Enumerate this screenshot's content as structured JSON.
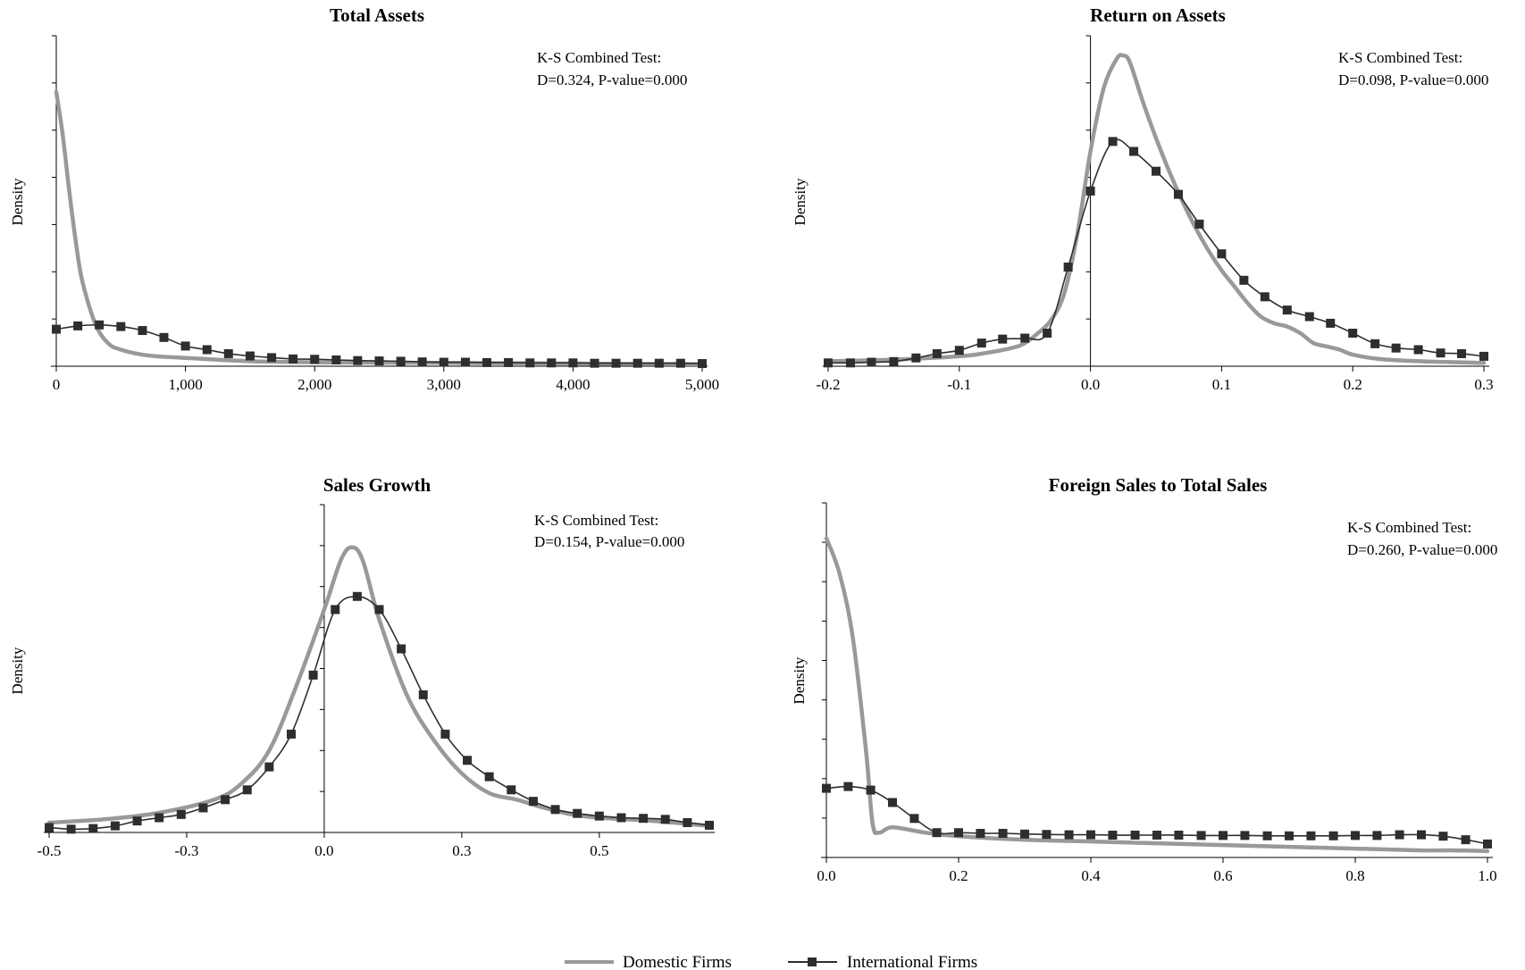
{
  "legend": {
    "domestic": {
      "label": "Domestic Firms",
      "color": "#999999"
    },
    "international": {
      "label": "International Firms",
      "color": "#2e2e2e"
    }
  },
  "chart_data": [
    {
      "type": "line",
      "title": "Total Assets",
      "xlabel": "",
      "ylabel": "Density",
      "xlim": [
        0,
        5000
      ],
      "ylim": [
        0,
        1
      ],
      "yaxis_at": 0,
      "x_ticks": [
        0,
        1000,
        2000,
        3000,
        4000,
        5000
      ],
      "x_tick_labels": [
        "0",
        "1,000",
        "2,000",
        "3,000",
        "4,000",
        "5,000"
      ],
      "y_minor_ticks": 7,
      "grid": false,
      "annotation": [
        "K-S Combined Test:",
        "D=0.324, P-value=0.000"
      ],
      "annotation_position": "top-right",
      "series": [
        {
          "name": "Domestic Firms",
          "style": "line",
          "x": [
            0,
            50,
            100,
            150,
            200,
            300,
            400,
            500,
            700,
            1000,
            1500,
            2000,
            3000,
            4000,
            5000
          ],
          "y": [
            0.83,
            0.7,
            0.53,
            0.38,
            0.26,
            0.13,
            0.07,
            0.05,
            0.033,
            0.025,
            0.015,
            0.012,
            0.01,
            0.008,
            0.006
          ]
        },
        {
          "name": "International Firms",
          "style": "line-marker",
          "x": [
            0,
            167,
            333,
            500,
            667,
            833,
            1000,
            1167,
            1333,
            1500,
            1667,
            1833,
            2000,
            2167,
            2333,
            2500,
            2667,
            2833,
            3000,
            3167,
            3333,
            3500,
            3667,
            3833,
            4000,
            4167,
            4333,
            4500,
            4667,
            4833,
            5000
          ],
          "y": [
            0.112,
            0.122,
            0.125,
            0.12,
            0.108,
            0.087,
            0.061,
            0.05,
            0.038,
            0.031,
            0.026,
            0.022,
            0.021,
            0.019,
            0.017,
            0.016,
            0.015,
            0.013,
            0.012,
            0.012,
            0.011,
            0.011,
            0.01,
            0.01,
            0.01,
            0.009,
            0.009,
            0.009,
            0.009,
            0.009,
            0.008
          ]
        }
      ]
    },
    {
      "type": "line",
      "title": "Return on Assets",
      "xlabel": "",
      "ylabel": "Density",
      "xlim": [
        -0.2,
        0.3
      ],
      "ylim": [
        0,
        1
      ],
      "yaxis_at": 0,
      "x_ticks": [
        -0.2,
        -0.1,
        0,
        0.1,
        0.2,
        0.3
      ],
      "x_tick_labels": [
        "-0.2",
        "-0.1",
        "0.0",
        "0.1",
        "0.2",
        "0.3"
      ],
      "y_minor_ticks": 7,
      "grid": false,
      "annotation": [
        "K-S Combined Test:",
        "D=0.098, P-value=0.000"
      ],
      "annotation_position": "top-right",
      "series": [
        {
          "name": "Domestic Firms",
          "style": "line",
          "x": [
            -0.2,
            -0.15,
            -0.1,
            -0.08,
            -0.06,
            -0.05,
            -0.04,
            -0.03,
            -0.02,
            -0.01,
            0.0,
            0.01,
            0.02,
            0.025,
            0.03,
            0.04,
            0.05,
            0.06,
            0.07,
            0.08,
            0.09,
            0.1,
            0.11,
            0.12,
            0.13,
            0.14,
            0.15,
            0.16,
            0.17,
            0.18,
            0.19,
            0.2,
            0.22,
            0.25,
            0.3
          ],
          "y": [
            0.015,
            0.02,
            0.03,
            0.04,
            0.055,
            0.07,
            0.1,
            0.14,
            0.22,
            0.4,
            0.65,
            0.84,
            0.93,
            0.94,
            0.92,
            0.8,
            0.69,
            0.59,
            0.5,
            0.42,
            0.35,
            0.29,
            0.24,
            0.19,
            0.15,
            0.13,
            0.12,
            0.1,
            0.07,
            0.06,
            0.05,
            0.035,
            0.022,
            0.015,
            0.01
          ]
        },
        {
          "name": "International Firms",
          "style": "line-marker",
          "x": [
            -0.2,
            -0.183,
            -0.167,
            -0.15,
            -0.133,
            -0.117,
            -0.1,
            -0.083,
            -0.067,
            -0.05,
            -0.033,
            -0.017,
            0.0,
            0.017,
            0.033,
            0.05,
            0.067,
            0.083,
            0.1,
            0.117,
            0.133,
            0.15,
            0.167,
            0.183,
            0.2,
            0.217,
            0.233,
            0.25,
            0.267,
            0.283,
            0.3
          ],
          "y": [
            0.01,
            0.01,
            0.012,
            0.014,
            0.025,
            0.038,
            0.048,
            0.07,
            0.082,
            0.085,
            0.1,
            0.3,
            0.53,
            0.68,
            0.65,
            0.59,
            0.52,
            0.43,
            0.34,
            0.26,
            0.21,
            0.17,
            0.15,
            0.13,
            0.1,
            0.068,
            0.055,
            0.05,
            0.04,
            0.038,
            0.03
          ]
        }
      ]
    },
    {
      "type": "line",
      "title": "Sales Growth",
      "xlabel": "",
      "ylabel": "Density",
      "xlim": [
        -0.5,
        0.7
      ],
      "ylim": [
        0,
        1
      ],
      "yaxis_at": 0,
      "x_ticks": [
        -0.5,
        -0.25,
        0,
        0.25,
        0.5
      ],
      "x_tick_labels": [
        "-0.5",
        "-0.3",
        "0.0",
        "0.3",
        "0.5"
      ],
      "y_minor_ticks": 8,
      "grid": false,
      "annotation": [
        "K-S Combined Test:",
        "D=0.154, P-value=0.000"
      ],
      "annotation_position": "top-right",
      "series": [
        {
          "name": "Domestic Firms",
          "style": "line",
          "x": [
            -0.5,
            -0.4,
            -0.3,
            -0.2,
            -0.15,
            -0.1,
            -0.05,
            0.0,
            0.03,
            0.05,
            0.07,
            0.1,
            0.15,
            0.2,
            0.25,
            0.3,
            0.35,
            0.4,
            0.45,
            0.5,
            0.6,
            0.7
          ],
          "y": [
            0.03,
            0.04,
            0.06,
            0.1,
            0.15,
            0.25,
            0.45,
            0.68,
            0.83,
            0.87,
            0.83,
            0.65,
            0.42,
            0.28,
            0.18,
            0.12,
            0.1,
            0.075,
            0.055,
            0.045,
            0.035,
            0.02
          ]
        },
        {
          "name": "International Firms",
          "style": "line-marker",
          "x": [
            -0.5,
            -0.46,
            -0.42,
            -0.38,
            -0.34,
            -0.3,
            -0.26,
            -0.22,
            -0.18,
            -0.14,
            -0.1,
            -0.06,
            -0.02,
            0.02,
            0.06,
            0.1,
            0.14,
            0.18,
            0.22,
            0.26,
            0.3,
            0.34,
            0.38,
            0.42,
            0.46,
            0.5,
            0.54,
            0.58,
            0.62,
            0.66,
            0.7
          ],
          "y": [
            0.015,
            0.01,
            0.012,
            0.02,
            0.035,
            0.045,
            0.055,
            0.075,
            0.1,
            0.13,
            0.2,
            0.3,
            0.48,
            0.68,
            0.72,
            0.68,
            0.56,
            0.42,
            0.3,
            0.22,
            0.17,
            0.13,
            0.095,
            0.07,
            0.058,
            0.05,
            0.045,
            0.043,
            0.04,
            0.03,
            0.022
          ]
        }
      ]
    },
    {
      "type": "line",
      "title": "Foreign Sales to Total Sales",
      "xlabel": "",
      "ylabel": "Density",
      "xlim": [
        0,
        1
      ],
      "ylim": [
        0,
        1
      ],
      "yaxis_at": 0,
      "x_ticks": [
        0,
        0.2,
        0.4,
        0.6,
        0.8,
        1
      ],
      "x_tick_labels": [
        "0.0",
        "0.2",
        "0.4",
        "0.6",
        "0.8",
        "1.0"
      ],
      "y_minor_ticks": 9,
      "grid": false,
      "annotation": [
        "K-S Combined Test:",
        "D=0.260, P-value=0.000"
      ],
      "annotation_position": "top-right",
      "series": [
        {
          "name": "Domestic Firms",
          "style": "line",
          "x": [
            0.0,
            0.02,
            0.04,
            0.06,
            0.07,
            0.08,
            0.1,
            0.15,
            0.2,
            0.3,
            0.4,
            0.5,
            0.6,
            0.7,
            0.8,
            0.9,
            0.95,
            1.0
          ],
          "y": [
            0.9,
            0.8,
            0.62,
            0.3,
            0.095,
            0.07,
            0.085,
            0.07,
            0.06,
            0.05,
            0.045,
            0.04,
            0.035,
            0.03,
            0.025,
            0.02,
            0.02,
            0.018
          ]
        },
        {
          "name": "International Firms",
          "style": "line-marker",
          "x": [
            0.0,
            0.033,
            0.067,
            0.1,
            0.133,
            0.167,
            0.2,
            0.233,
            0.267,
            0.3,
            0.333,
            0.367,
            0.4,
            0.433,
            0.467,
            0.5,
            0.533,
            0.567,
            0.6,
            0.633,
            0.667,
            0.7,
            0.733,
            0.767,
            0.8,
            0.833,
            0.867,
            0.9,
            0.933,
            0.967,
            1.0
          ],
          "y": [
            0.195,
            0.2,
            0.19,
            0.155,
            0.11,
            0.07,
            0.07,
            0.068,
            0.068,
            0.066,
            0.065,
            0.064,
            0.064,
            0.063,
            0.063,
            0.063,
            0.063,
            0.062,
            0.062,
            0.062,
            0.061,
            0.061,
            0.061,
            0.061,
            0.062,
            0.062,
            0.064,
            0.064,
            0.06,
            0.05,
            0.038
          ]
        }
      ]
    }
  ]
}
